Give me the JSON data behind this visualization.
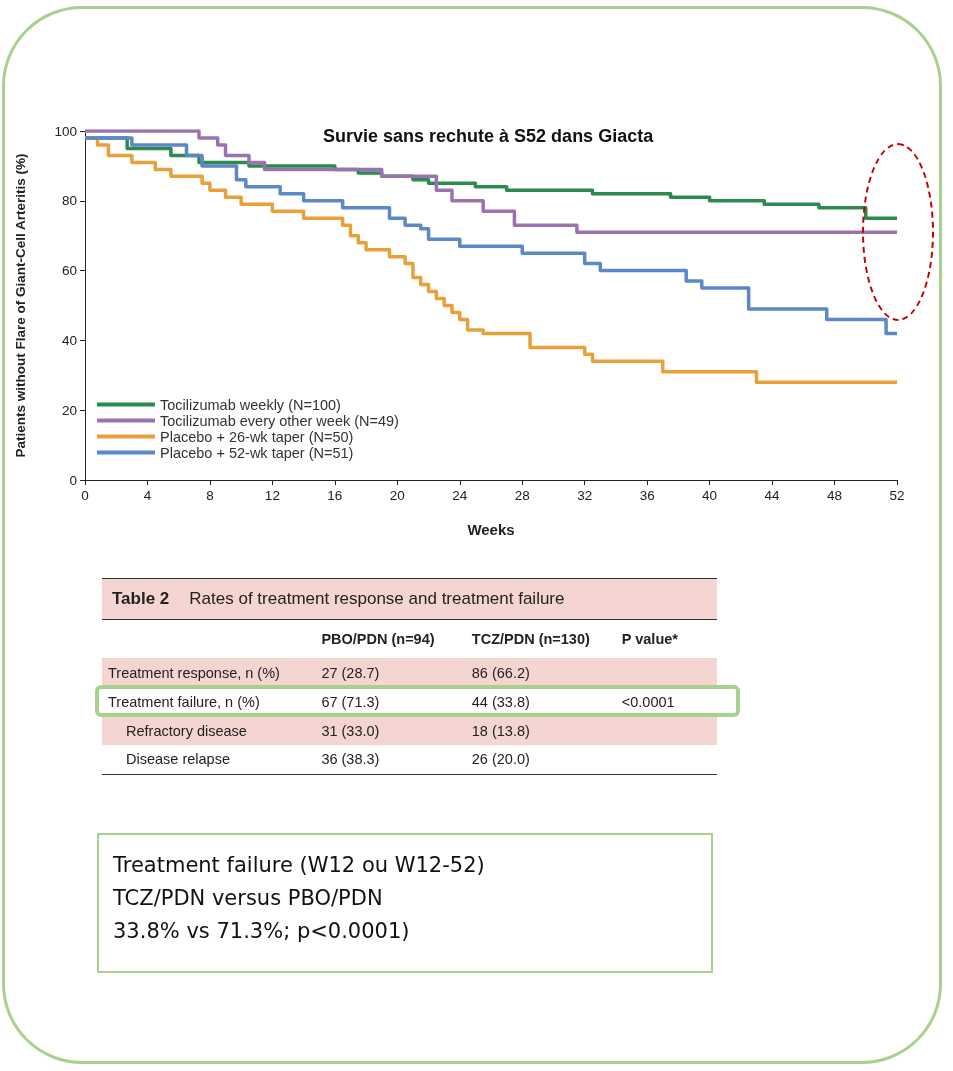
{
  "chart_data": [
    {
      "type": "step",
      "title": "Survie sans rechute à S52 dans Giacta",
      "xlabel": "Weeks",
      "ylabel": "Patients without Flare of Giant-Cell Arteritis (%)",
      "xlim": [
        0,
        52
      ],
      "xticks": [
        0,
        4,
        8,
        12,
        16,
        20,
        24,
        28,
        32,
        36,
        40,
        44,
        48,
        52
      ],
      "ylim": [
        0,
        100
      ],
      "yticks": [
        0,
        20,
        40,
        60,
        80,
        100
      ],
      "grid": false,
      "legend": "bottom left",
      "marker": "none",
      "line_style": "solid",
      "series": [
        {
          "name": "Tocilizumab weekly (N=100)",
          "color": "#2b8a4e",
          "x": [
            0,
            2.7,
            5.5,
            7.3,
            10.5,
            16,
            17.5,
            19,
            21,
            22,
            25,
            27,
            32.5,
            37.5,
            40,
            43.5,
            47,
            50,
            52
          ],
          "values": [
            98,
            95,
            93,
            91,
            90,
            89,
            88,
            87,
            86,
            85,
            84,
            83,
            82,
            81,
            80,
            79,
            78,
            75,
            75
          ]
        },
        {
          "name": "Tocilizumab every other week (N=49)",
          "color": "#9b72b0",
          "x": [
            0,
            7.3,
            8.5,
            9,
            10.5,
            11.5,
            19,
            22.5,
            23.5,
            25.5,
            27.5,
            31.5,
            52
          ],
          "values": [
            100,
            98,
            96,
            93,
            91,
            89,
            87,
            83,
            80,
            77,
            73,
            71,
            71
          ]
        },
        {
          "name": "Placebo + 26-wk taper (N=50)",
          "color": "#e8a03a",
          "x": [
            0,
            0.8,
            1.5,
            3,
            4.5,
            5.5,
            7.5,
            8,
            9,
            10,
            12,
            14,
            16.5,
            17,
            17.5,
            18,
            19.5,
            20.5,
            21,
            21.5,
            22,
            22.5,
            23,
            23.5,
            24,
            24.5,
            25.5,
            28.5,
            32,
            32.5,
            37,
            43,
            52
          ],
          "values": [
            98,
            96,
            93,
            91,
            89,
            87,
            85,
            83,
            81,
            79,
            77,
            75,
            73,
            70,
            68,
            66,
            64,
            62,
            58,
            56,
            54,
            52,
            50,
            48,
            46,
            43,
            42,
            38,
            36,
            34,
            31,
            28,
            28
          ]
        },
        {
          "name": "Placebo + 52-wk taper (N=51)",
          "color": "#5b88c6",
          "x": [
            0,
            3,
            6.5,
            7.5,
            9.7,
            10.3,
            12.5,
            14,
            16.5,
            19.5,
            20.5,
            21.5,
            22,
            24,
            28,
            32,
            33,
            38.5,
            39.5,
            42.5,
            47.5,
            51.3,
            52
          ],
          "values": [
            98,
            96,
            93,
            90,
            86,
            84,
            82,
            80,
            78,
            75,
            73,
            72,
            69,
            67,
            65,
            62,
            60,
            57,
            55,
            49,
            46,
            42,
            42
          ]
        }
      ]
    },
    {
      "type": "other",
      "title": "Table 2",
      "subtitle": "Rates of treatment response and treatment failure",
      "categories": [
        null,
        "PBO/PDN (n=94)",
        "TCZ/PDN (n=130)",
        "P value*"
      ],
      "y_categories": [
        "Treatment response, n (%)",
        "Treatment failure, n (%)",
        "Refractory disease",
        "Disease relapse"
      ],
      "cell_labels": [
        [
          "27 (28.7)",
          "86 (66.2)",
          null
        ],
        [
          "67 (71.3)",
          "44 (33.8)",
          "<0.0001"
        ],
        [
          "31 (33.0)",
          "18 (13.8)",
          null
        ],
        [
          "36 (38.3)",
          "26 (20.0)",
          null
        ]
      ]
    },
    {
      "type": "other",
      "annotations": [
        "Treatment failure  (W12 ou W12-52)",
        "TCZ/PDN versus PBO/PDN",
        "33.8% vs 71.3%; p<0.0001)"
      ]
    }
  ]
}
